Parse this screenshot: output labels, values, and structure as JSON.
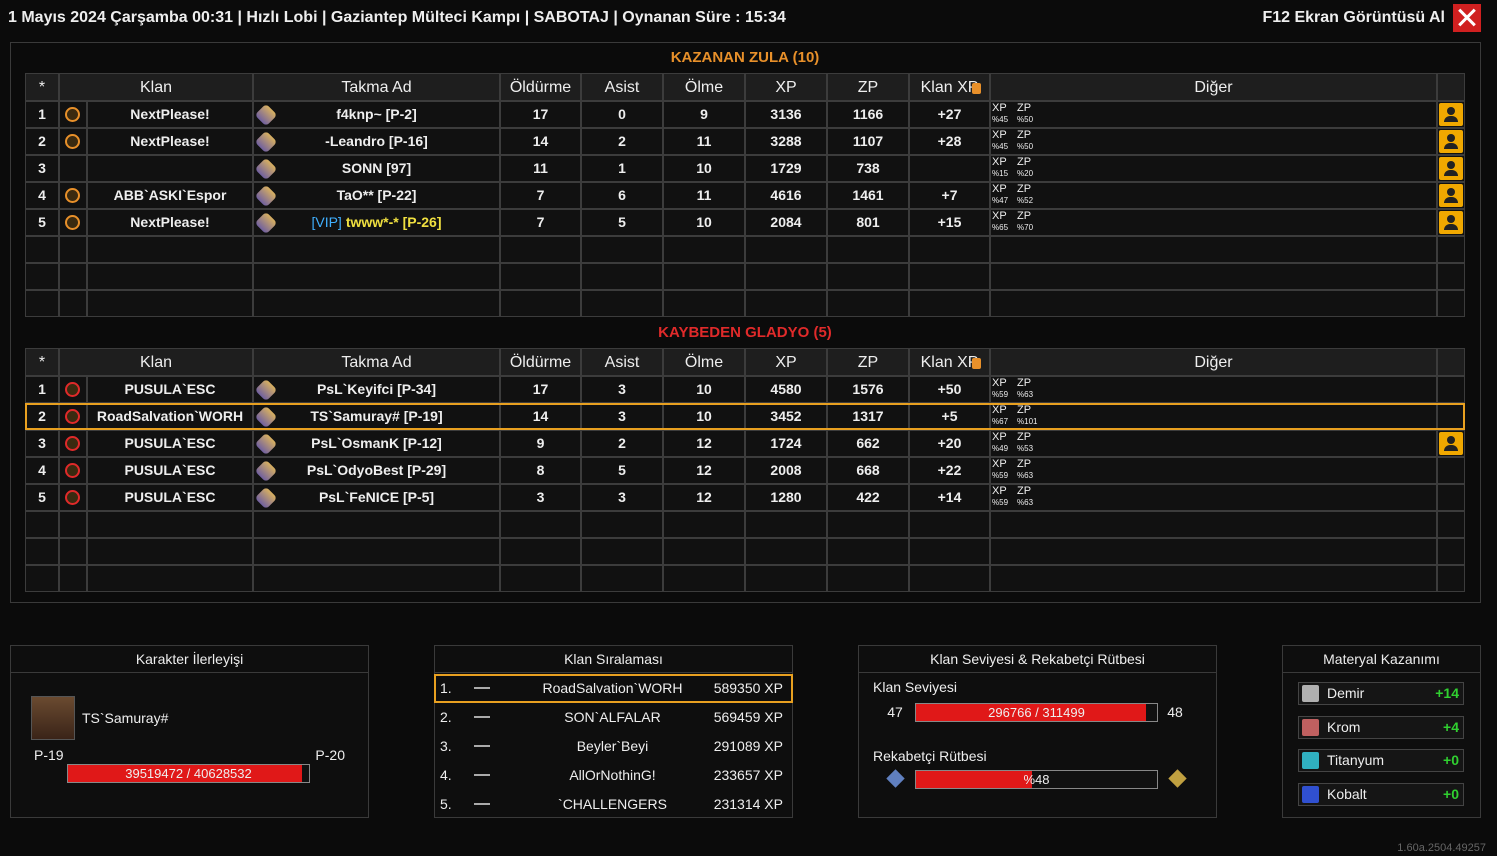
{
  "header": {
    "title": "1 Mayıs 2024 Çarşamba 00:31 | Hızlı Lobi | Gaziantep Mülteci Kampı | SABOTAJ | Oynanan Süre : 15:34",
    "screenshot": "F12 Ekran Görüntüsü Al"
  },
  "columns": [
    "*",
    "Klan",
    "Takma Ad",
    "Öldürme",
    "Asist",
    "Ölme",
    "XP",
    "ZP",
    "Klan XP",
    "Diğer"
  ],
  "bonus_labels": [
    "XP",
    "ZP"
  ],
  "teams": [
    {
      "title": "KAZANAN ZULA (10)",
      "title_color": "#e8902a",
      "rows": [
        {
          "rank": 1,
          "clan": "NextPlease!",
          "nick": "f4knp~ [P-2]",
          "kills": 17,
          "assists": 0,
          "deaths": 9,
          "xp": 3136,
          "zp": 1166,
          "clan_xp": "+27",
          "xp_bonus": "%45",
          "zp_bonus": "%50",
          "add_friend": true
        },
        {
          "rank": 2,
          "clan": "NextPlease!",
          "nick": "-Leandro [P-16]",
          "kills": 14,
          "assists": 2,
          "deaths": 11,
          "xp": 3288,
          "zp": 1107,
          "clan_xp": "+28",
          "xp_bonus": "%45",
          "zp_bonus": "%50",
          "add_friend": true
        },
        {
          "rank": 3,
          "nick": "SONN [97]",
          "kills": 11,
          "assists": 1,
          "deaths": 10,
          "xp": 1729,
          "zp": 738,
          "xp_bonus": "%15",
          "zp_bonus": "%20",
          "add_friend": true
        },
        {
          "rank": 4,
          "clan": "ABB`ASKI`Espor",
          "nick": "TaO** [P-22]",
          "kills": 7,
          "assists": 6,
          "deaths": 11,
          "xp": 4616,
          "zp": 1461,
          "clan_xp": "+7",
          "xp_bonus": "%47",
          "zp_bonus": "%52",
          "add_friend": true
        },
        {
          "rank": 5,
          "clan": "NextPlease!",
          "nick_tag": "[VIP]",
          "nick": "twww*-* [P-26]",
          "kills": 7,
          "assists": 5,
          "deaths": 10,
          "xp": 2084,
          "zp": 801,
          "clan_xp": "+15",
          "xp_bonus": "%65",
          "zp_bonus": "%70",
          "add_friend": true
        }
      ]
    },
    {
      "title": "KAYBEDEN GLADYO (5)",
      "title_color": "#e02a2a",
      "rows": [
        {
          "rank": 1,
          "clan": "PUSULA`ESC",
          "nick": "PsL`Keyifci [P-34]",
          "kills": 17,
          "assists": 3,
          "deaths": 10,
          "xp": 4580,
          "zp": 1576,
          "clan_xp": "+50",
          "xp_bonus": "%59",
          "zp_bonus": "%63"
        },
        {
          "rank": 2,
          "clan": "RoadSalvation`WORH",
          "nick": "TS`Samuray# [P-19]",
          "kills": 14,
          "assists": 3,
          "deaths": 10,
          "xp": 3452,
          "zp": 1317,
          "clan_xp": "+5",
          "xp_bonus": "%67",
          "zp_bonus": "%101",
          "highlight": true
        },
        {
          "rank": 3,
          "clan": "PUSULA`ESC",
          "nick": "PsL`OsmanK [P-12]",
          "kills": 9,
          "assists": 2,
          "deaths": 12,
          "xp": 1724,
          "zp": 662,
          "clan_xp": "+20",
          "xp_bonus": "%49",
          "zp_bonus": "%53",
          "add_friend": true
        },
        {
          "rank": 4,
          "clan": "PUSULA`ESC",
          "nick": "PsL`OdyoBest [P-29]",
          "kills": 8,
          "assists": 5,
          "deaths": 12,
          "xp": 2008,
          "zp": 668,
          "clan_xp": "+22",
          "xp_bonus": "%59",
          "zp_bonus": "%63"
        },
        {
          "rank": 5,
          "clan": "PUSULA`ESC",
          "nick": "PsL`FeNICE [P-5]",
          "kills": 3,
          "assists": 3,
          "deaths": 12,
          "xp": 1280,
          "zp": 422,
          "clan_xp": "+14",
          "xp_bonus": "%59",
          "zp_bonus": "%63"
        }
      ]
    }
  ],
  "progress": {
    "title": "Karakter İlerleyişi",
    "name": "TS`Samuray#",
    "level_from": "P-19",
    "level_to": "P-20",
    "current": 39519472,
    "max": 40628532,
    "label": "39519472 / 40628532"
  },
  "ranking": {
    "title": "Klan Sıralaması",
    "rows": [
      {
        "rank": "1.",
        "name": "RoadSalvation`WORH",
        "xp": "589350 XP",
        "highlight": true
      },
      {
        "rank": "2.",
        "name": "SON`ALFALAR",
        "xp": "569459 XP"
      },
      {
        "rank": "3.",
        "name": "Beyler`Beyi",
        "xp": "291089 XP"
      },
      {
        "rank": "4.",
        "name": "AllOrNothinG!",
        "xp": "233657 XP"
      },
      {
        "rank": "5.",
        "name": "`CHALLENGERS",
        "xp": "231314 XP"
      }
    ]
  },
  "clan_level": {
    "title": "Klan Seviyesi & Rekabetçi Rütbesi",
    "level_label": "Klan Seviyesi",
    "level_from": 47,
    "level_to": 48,
    "current": 296766,
    "max": 311499,
    "label": "296766 / 311499",
    "rank_label": "Rekabetçi Rütbesi",
    "rank_percent": 48,
    "rank_percent_label": "%48"
  },
  "materials": {
    "title": "Materyal Kazanımı",
    "items": [
      {
        "name": "Demir",
        "value": "+14",
        "color": "#b0b0b0"
      },
      {
        "name": "Krom",
        "value": "+4",
        "color": "#c06060"
      },
      {
        "name": "Titanyum",
        "value": "+0",
        "color": "#30b0c0"
      },
      {
        "name": "Kobalt",
        "value": "+0",
        "color": "#3050d0"
      }
    ]
  },
  "version": "1.60a.2504.49257"
}
